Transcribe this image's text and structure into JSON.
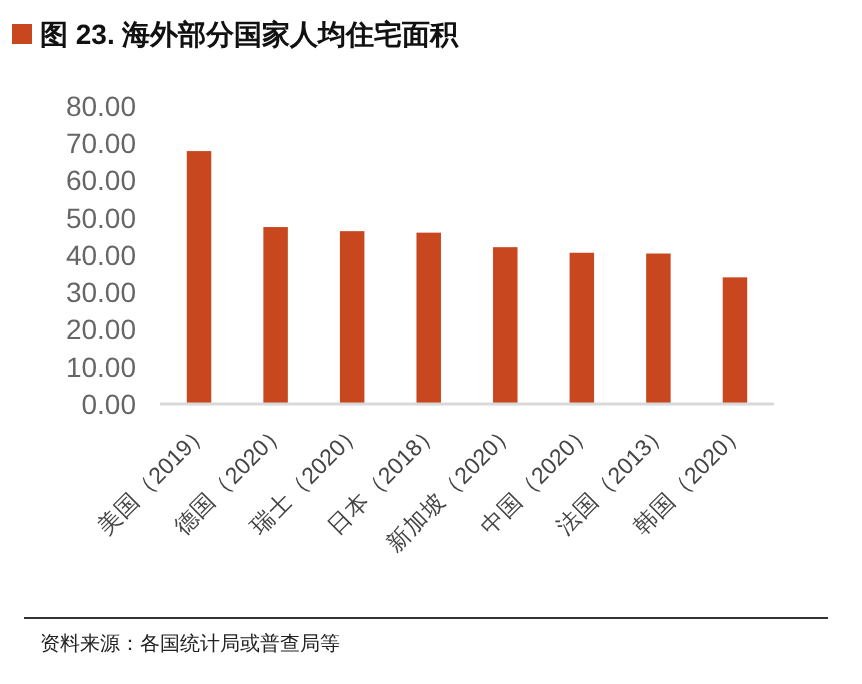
{
  "chart_data": {
    "type": "bar",
    "title": "图 23. 海外部分国家人均住宅面积",
    "categories": [
      "美国（2019）",
      "德国（2020）",
      "瑞士（2020）",
      "日本（2018）",
      "新加坡（2020）",
      "中国（2020）",
      "法国（2013）",
      "韩国（2020）"
    ],
    "values": [
      67.9,
      47.5,
      46.4,
      46.0,
      42.1,
      40.6,
      40.4,
      34.0
    ],
    "color": "#c9471f",
    "ylim": [
      0,
      80
    ],
    "yticks": [
      {
        "value": 0,
        "label": "0.00"
      },
      {
        "value": 10,
        "label": "10.00"
      },
      {
        "value": 20,
        "label": "20.00"
      },
      {
        "value": 30,
        "label": "30.00"
      },
      {
        "value": 40,
        "label": "40.00"
      },
      {
        "value": 50,
        "label": "50.00"
      },
      {
        "value": 60,
        "label": "60.00"
      },
      {
        "value": 70,
        "label": "70.00"
      },
      {
        "value": 80,
        "label": "80.00"
      }
    ],
    "grid": false,
    "annotations": [
      "资料来源：各国统计局或普查局等"
    ]
  }
}
